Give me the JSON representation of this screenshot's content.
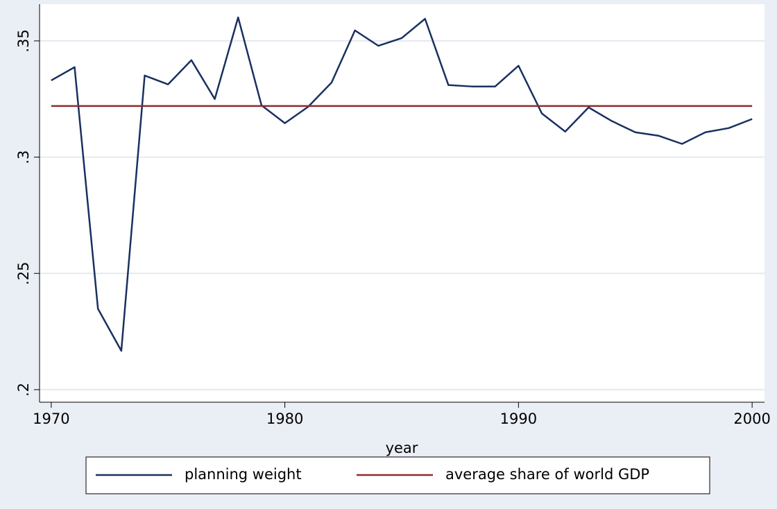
{
  "chart_data": {
    "type": "line",
    "x_label": "year",
    "x": [
      1970,
      1971,
      1972,
      1973,
      1974,
      1975,
      1976,
      1977,
      1978,
      1979,
      1980,
      1981,
      1982,
      1983,
      1984,
      1985,
      1986,
      1987,
      1988,
      1989,
      1990,
      1991,
      1992,
      1993,
      1994,
      1995,
      1996,
      1997,
      1998,
      1999,
      2000
    ],
    "series": [
      {
        "name": "planning weight",
        "color": "#1a3060",
        "values": [
          0.333,
          0.3387,
          0.2348,
          0.2167,
          0.3351,
          0.3313,
          0.3417,
          0.325,
          0.3601,
          0.3223,
          0.3146,
          0.3217,
          0.3321,
          0.3545,
          0.3479,
          0.3512,
          0.3595,
          0.331,
          0.3304,
          0.3304,
          0.3393,
          0.3188,
          0.311,
          0.3214,
          0.3155,
          0.3107,
          0.3092,
          0.3057,
          0.3107,
          0.3125,
          0.3164
        ]
      },
      {
        "name": "average share of world GDP",
        "color": "#8f2a2f",
        "values": [
          0.322,
          0.322,
          0.322,
          0.322,
          0.322,
          0.322,
          0.322,
          0.322,
          0.322,
          0.322,
          0.322,
          0.322,
          0.322,
          0.322,
          0.322,
          0.322,
          0.322,
          0.322,
          0.322,
          0.322,
          0.322,
          0.322,
          0.322,
          0.322,
          0.322,
          0.322,
          0.322,
          0.322,
          0.322,
          0.322,
          0.322
        ]
      }
    ],
    "xlim": [
      1969.5,
      2000.53
    ],
    "xticks": [
      1970,
      1980,
      1990,
      2000
    ],
    "ylim": [
      0.1946,
      0.3658
    ],
    "yticks": [
      {
        "value": 0.2,
        "label": ".2"
      },
      {
        "value": 0.25,
        "label": ".25"
      },
      {
        "value": 0.3,
        "label": ".3"
      },
      {
        "value": 0.35,
        "label": ".35"
      }
    ],
    "grid": true,
    "legend": "bottom"
  }
}
